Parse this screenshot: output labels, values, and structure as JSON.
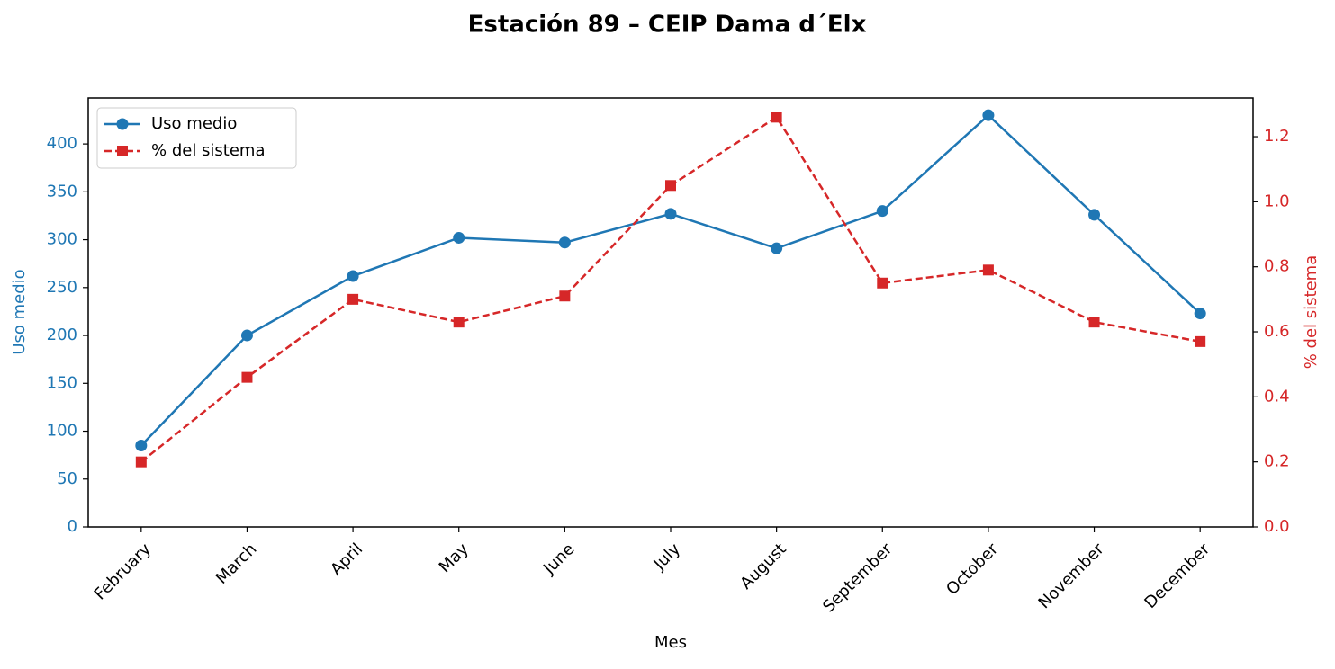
{
  "chart_data": {
    "type": "line",
    "title": "Estación 89 – CEIP Dama d´Elx",
    "xlabel": "Mes",
    "ylabel": "Uso medio",
    "y2label": "% del sistema",
    "categories": [
      "February",
      "March",
      "April",
      "May",
      "June",
      "July",
      "August",
      "September",
      "October",
      "November",
      "December"
    ],
    "series": [
      {
        "name": "Uso medio",
        "color": "#1f77b4",
        "marker": "circle",
        "linestyle": "solid",
        "values": [
          85,
          200,
          262,
          302,
          297,
          327,
          291,
          330,
          430,
          326,
          223
        ]
      },
      {
        "name": "% del sistema",
        "color": "#d62728",
        "marker": "square",
        "linestyle": "dashed",
        "axis": "y2",
        "values": [
          0.2,
          0.46,
          0.7,
          0.63,
          0.71,
          1.05,
          1.26,
          0.75,
          0.79,
          0.63,
          0.57
        ]
      }
    ],
    "ylim": [
      0,
      448
    ],
    "yticks": [
      0,
      50,
      100,
      150,
      200,
      250,
      300,
      350,
      400
    ],
    "y2lim": [
      0,
      1.319
    ],
    "y2ticks": [
      {
        "value": 0,
        "label": "0.0"
      },
      0.2,
      0.4,
      0.6,
      0.8,
      {
        "value": 1,
        "label": "1.0"
      },
      1.2
    ],
    "legend": "upper left",
    "grid": false
  }
}
